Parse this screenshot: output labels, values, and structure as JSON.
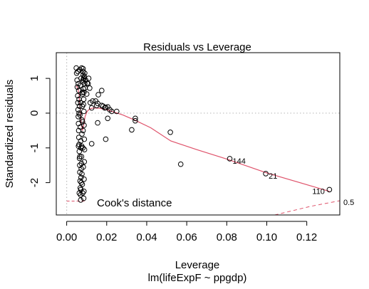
{
  "chart_data": {
    "type": "scatter",
    "title": "Residuals vs Leverage",
    "xlabel": "Leverage",
    "ylabel": "Standardized residuals",
    "sublabel": "lm(lifeExpF ~ ppgdp)",
    "xlim": [
      -0.0052,
      0.1365
    ],
    "ylim": [
      -2.93,
      1.74
    ],
    "x_ticks": [
      0.0,
      0.02,
      0.04,
      0.06,
      0.08,
      0.1,
      0.12
    ],
    "x_tick_labels": [
      "0.00",
      "0.02",
      "0.04",
      "0.06",
      "0.08",
      "0.10",
      "0.12"
    ],
    "y_ticks": [
      -2,
      -1,
      0,
      1
    ],
    "y_tick_labels": [
      "-2",
      "-1",
      "0",
      "1"
    ],
    "points": [
      [
        0.0072,
        1.0
      ],
      [
        0.0085,
        1.0
      ],
      [
        0.009,
        0.85
      ],
      [
        0.0092,
        0.72
      ],
      [
        0.0095,
        0.95
      ],
      [
        0.01,
        0.55
      ],
      [
        0.0102,
        0.86
      ],
      [
        0.0107,
        0.85
      ],
      [
        0.011,
        1.0
      ],
      [
        0.0115,
        0.72
      ],
      [
        0.0118,
        0.3
      ],
      [
        0.0125,
        0.15
      ],
      [
        0.013,
        0.35
      ],
      [
        0.0145,
        0.35
      ],
      [
        0.015,
        0.22
      ],
      [
        0.0155,
        0.28
      ],
      [
        0.0158,
        0.53
      ],
      [
        0.0175,
        0.65
      ],
      [
        0.0175,
        0.22
      ],
      [
        0.0182,
        0.2
      ],
      [
        0.019,
        0.15
      ],
      [
        0.0195,
        0.16
      ],
      [
        0.0205,
        0.18
      ],
      [
        0.0215,
        0.1
      ],
      [
        0.0225,
        0.05
      ],
      [
        0.025,
        0.05
      ],
      [
        0.0155,
        -0.28
      ],
      [
        0.0205,
        -0.15
      ],
      [
        0.0195,
        -0.75
      ],
      [
        0.0125,
        -0.88
      ],
      [
        0.0325,
        -0.48
      ],
      [
        0.0343,
        -0.22
      ],
      [
        0.0343,
        -0.15
      ],
      [
        0.0518,
        -0.55
      ],
      [
        0.057,
        -1.47
      ],
      [
        0.0815,
        -1.31
      ],
      [
        0.0995,
        -1.74
      ],
      [
        0.1313,
        -2.2
      ],
      [
        0.0048,
        1.3
      ],
      [
        0.005,
        1.15
      ],
      [
        0.0052,
        0.95
      ],
      [
        0.0053,
        0.75
      ],
      [
        0.0055,
        0.5
      ],
      [
        0.0056,
        0.3
      ],
      [
        0.0057,
        0.1
      ],
      [
        0.0058,
        -0.1
      ],
      [
        0.0059,
        -0.3
      ],
      [
        0.006,
        -0.5
      ],
      [
        0.0061,
        -0.7
      ],
      [
        0.0062,
        -0.9
      ],
      [
        0.0063,
        -1.1
      ],
      [
        0.0064,
        -1.3
      ],
      [
        0.0065,
        -1.5
      ],
      [
        0.0066,
        -1.7
      ],
      [
        0.0067,
        -1.95
      ],
      [
        0.0068,
        -2.15
      ],
      [
        0.0069,
        -2.35
      ],
      [
        0.007,
        -2.5
      ],
      [
        0.0071,
        -2.2
      ],
      [
        0.0072,
        -1.85
      ],
      [
        0.0073,
        -1.6
      ],
      [
        0.0074,
        -1.25
      ],
      [
        0.0075,
        -0.95
      ],
      [
        0.0076,
        -0.6
      ],
      [
        0.0077,
        -0.2
      ],
      [
        0.0078,
        0.2
      ],
      [
        0.0079,
        0.55
      ],
      [
        0.008,
        0.9
      ],
      [
        0.0081,
        1.2
      ],
      [
        0.0082,
        1.28
      ],
      [
        0.0083,
        1.1
      ],
      [
        0.0084,
        0.7
      ],
      [
        0.0085,
        0.4
      ],
      [
        0.0086,
        0.05
      ],
      [
        0.0087,
        -0.35
      ],
      [
        0.0088,
        -0.75
      ],
      [
        0.0089,
        -1.05
      ],
      [
        0.0088,
        -1.4
      ],
      [
        0.0087,
        -1.9
      ],
      [
        0.0086,
        -2.25
      ],
      [
        0.0085,
        -2.45
      ],
      [
        0.0056,
        1.2
      ],
      [
        0.0058,
        0.85
      ],
      [
        0.006,
        0.65
      ],
      [
        0.0062,
        0.4
      ],
      [
        0.0064,
        0.2
      ],
      [
        0.0066,
        -0.05
      ],
      [
        0.0068,
        -0.4
      ],
      [
        0.007,
        -0.8
      ],
      [
        0.0072,
        -1.0
      ],
      [
        0.0074,
        -1.45
      ],
      [
        0.0076,
        -1.75
      ],
      [
        0.0078,
        -2.05
      ],
      [
        0.008,
        -2.3
      ],
      [
        0.0082,
        -0.5
      ],
      [
        0.0084,
        0.25
      ],
      [
        0.0086,
        0.6
      ],
      [
        0.0088,
        1.05
      ],
      [
        0.009,
        1.15
      ],
      [
        0.0065,
        1.25
      ],
      [
        0.0075,
        1.3
      ],
      [
        0.0082,
        0.95
      ],
      [
        0.0068,
        0.8
      ],
      [
        0.0078,
        0.6
      ],
      [
        0.0062,
        0.0
      ],
      [
        0.007,
        0.3
      ],
      [
        0.0079,
        -0.25
      ],
      [
        0.0066,
        -1.25
      ],
      [
        0.0083,
        -1.55
      ],
      [
        0.0073,
        -2.0
      ],
      [
        0.0063,
        -2.3
      ],
      [
        0.0081,
        -1.0
      ],
      [
        0.0059,
        -0.95
      ]
    ],
    "labeled_points": [
      {
        "x": 0.0815,
        "y": -1.31,
        "label": "144"
      },
      {
        "x": 0.0995,
        "y": -1.74,
        "label": "21"
      },
      {
        "x": 0.1313,
        "y": -2.2,
        "label": "110"
      }
    ],
    "smooth_line": [
      [
        0.0048,
        0.78
      ],
      [
        0.0055,
        0.72
      ],
      [
        0.0062,
        0.55
      ],
      [
        0.0068,
        0.1
      ],
      [
        0.0073,
        -0.3
      ],
      [
        0.0079,
        -0.5
      ],
      [
        0.0085,
        -0.35
      ],
      [
        0.0092,
        -0.1
      ],
      [
        0.0102,
        0.05
      ],
      [
        0.0115,
        0.12
      ],
      [
        0.0135,
        0.15
      ],
      [
        0.0165,
        0.14
      ],
      [
        0.021,
        0.08
      ],
      [
        0.028,
        -0.05
      ],
      [
        0.034,
        -0.2
      ],
      [
        0.042,
        -0.42
      ],
      [
        0.052,
        -0.8
      ],
      [
        0.065,
        -1.05
      ],
      [
        0.08,
        -1.32
      ],
      [
        0.1,
        -1.72
      ],
      [
        0.1313,
        -2.25
      ]
    ],
    "cooks_contour": {
      "level_label": "0.5",
      "points": [
        [
          0.104,
          -2.93
        ],
        [
          0.112,
          -2.82
        ],
        [
          0.122,
          -2.68
        ],
        [
          0.1365,
          -2.52
        ]
      ]
    },
    "cooks_short_line": [
      [
        0.0,
        -2.53
      ],
      [
        0.0092,
        -2.53
      ]
    ],
    "cooks_legend": "Cook's distance",
    "colors": {
      "smooth": "#DF536B",
      "contour": "#DF536B",
      "reference": "#BEBEBE",
      "points": "#000000"
    }
  }
}
